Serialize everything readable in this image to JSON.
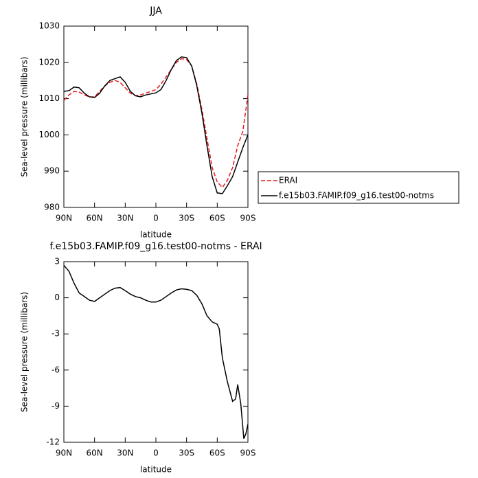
{
  "chart_data": [
    {
      "type": "line",
      "title": "JJA",
      "x_label": "latitude",
      "y_label": "Sea-level pressure (millibars)",
      "x": [
        90,
        85,
        80,
        75,
        70,
        65,
        60,
        55,
        50,
        45,
        40,
        35,
        30,
        25,
        20,
        15,
        10,
        5,
        0,
        -5,
        -10,
        -15,
        -20,
        -25,
        -30,
        -35,
        -40,
        -45,
        -50,
        -55,
        -60,
        -65,
        -70,
        -75,
        -80,
        -85,
        -90
      ],
      "series": [
        {
          "name": "ERAI",
          "color": "#e8191c",
          "dash": true,
          "values": [
            1009.5,
            1011,
            1012,
            1011.8,
            1011,
            1010.5,
            1010.5,
            1012,
            1013.5,
            1014.5,
            1015,
            1014.5,
            1013,
            1011.5,
            1010.8,
            1011,
            1011.5,
            1012,
            1012.5,
            1014,
            1016,
            1018,
            1020,
            1021,
            1020.8,
            1019,
            1014,
            1007,
            999,
            991,
            987,
            985.5,
            987.5,
            991,
            997,
            1001,
            1011
          ]
        },
        {
          "name": "f.e15b03.FAMIP.f09_g16.test00-notms",
          "color": "#000000",
          "dash": false,
          "values": [
            1012,
            1012.2,
            1013.2,
            1013,
            1011.5,
            1010.5,
            1010.3,
            1011.5,
            1013.5,
            1015,
            1015.5,
            1016,
            1014.5,
            1012,
            1010.8,
            1010.5,
            1011,
            1011.3,
            1011.6,
            1012.5,
            1015,
            1018,
            1020.5,
            1021.5,
            1021.3,
            1019,
            1013.5,
            1006,
            997,
            988.5,
            984,
            983.8,
            986,
            988.5,
            992.5,
            996.5,
            1000
          ]
        }
      ],
      "xlim": [
        90,
        -90
      ],
      "xticks": [
        {
          "value": 90,
          "label": "90N"
        },
        {
          "value": 60,
          "label": "60N"
        },
        {
          "value": 30,
          "label": "30N"
        },
        0,
        {
          "value": -30,
          "label": "30S"
        },
        {
          "value": -60,
          "label": "60S"
        },
        {
          "value": -90,
          "label": "90S"
        }
      ],
      "ylim": [
        980,
        1030
      ],
      "yticks": [
        980,
        990,
        1000,
        1010,
        1020,
        1030
      ],
      "legend": "right"
    },
    {
      "type": "line",
      "title": "f.e15b03.FAMIP.f09_g16.test00-notms - ERAI",
      "x_label": "latitude",
      "y_label": "Sea-level pressure (millibars)",
      "x": [
        90,
        85,
        80,
        75,
        70,
        65,
        60,
        55,
        50,
        45,
        40,
        35,
        30,
        25,
        20,
        15,
        10,
        5,
        0,
        -5,
        -10,
        -15,
        -20,
        -25,
        -30,
        -35,
        -40,
        -45,
        -50,
        -55,
        -60,
        -62,
        -65,
        -70,
        -75,
        -78,
        -80,
        -83,
        -86,
        -88,
        -90
      ],
      "series": [
        {
          "color": "#000000",
          "dash": false,
          "values": [
            2.7,
            2.2,
            1.2,
            0.4,
            0.1,
            -0.2,
            -0.3,
            0,
            0.3,
            0.6,
            0.8,
            0.85,
            0.6,
            0.3,
            0.1,
            0,
            -0.2,
            -0.35,
            -0.35,
            -0.2,
            0.1,
            0.4,
            0.65,
            0.75,
            0.7,
            0.6,
            0.2,
            -0.5,
            -1.5,
            -2,
            -2.2,
            -2.6,
            -5,
            -7,
            -8.6,
            -8.4,
            -7.2,
            -8.8,
            -11.7,
            -11.3,
            -10.5
          ]
        }
      ],
      "xlim": [
        90,
        -90
      ],
      "xticks": [
        {
          "value": 90,
          "label": "90N"
        },
        {
          "value": 60,
          "label": "60N"
        },
        {
          "value": 30,
          "label": "30N"
        },
        0,
        {
          "value": -30,
          "label": "30S"
        },
        {
          "value": -60,
          "label": "60S"
        },
        {
          "value": -90,
          "label": "90S"
        }
      ],
      "ylim": [
        -12,
        3
      ],
      "yticks": [
        -12,
        -9,
        -6,
        -3,
        0,
        3
      ]
    }
  ]
}
